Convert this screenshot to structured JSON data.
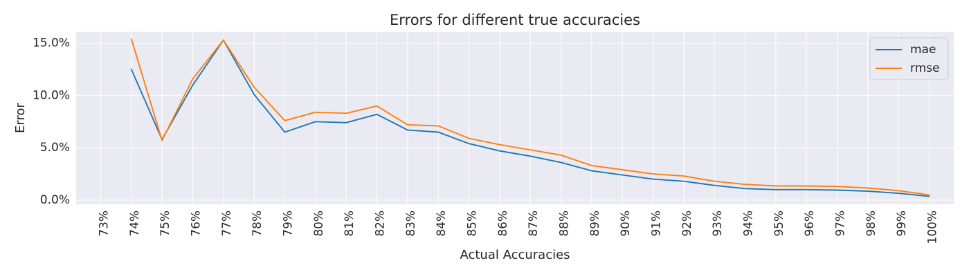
{
  "chart_data": {
    "type": "line",
    "title": "Errors for different true accuracies",
    "xlabel": "Actual Accuracies",
    "ylabel": "Error",
    "x_tick_labels": [
      "73%",
      "74%",
      "75%",
      "76%",
      "77%",
      "78%",
      "79%",
      "80%",
      "81%",
      "82%",
      "83%",
      "84%",
      "85%",
      "86%",
      "87%",
      "88%",
      "89%",
      "90%",
      "91%",
      "92%",
      "93%",
      "94%",
      "95%",
      "96%",
      "97%",
      "98%",
      "99%",
      "100%"
    ],
    "y_tick_labels": [
      "0.0%",
      "5.0%",
      "10.0%",
      "15.0%"
    ],
    "y_ticks": [
      0,
      5,
      10,
      15
    ],
    "xlim": [
      72.2,
      100.8
    ],
    "ylim": [
      -0.4,
      16.1
    ],
    "grid": true,
    "legend_position": "top-right",
    "x": [
      74,
      75,
      76,
      77,
      78,
      79,
      80,
      81,
      82,
      83,
      84,
      85,
      86,
      87,
      88,
      89,
      90,
      91,
      92,
      93,
      94,
      95,
      96,
      97,
      98,
      99,
      100
    ],
    "series": [
      {
        "name": "mae",
        "color": "#1f77b4",
        "values": [
          12.5,
          5.8,
          11.0,
          15.3,
          10.1,
          6.5,
          7.5,
          7.4,
          8.2,
          6.7,
          6.5,
          5.4,
          4.7,
          4.2,
          3.6,
          2.8,
          2.4,
          2.0,
          1.8,
          1.4,
          1.1,
          1.0,
          1.0,
          0.95,
          0.85,
          0.65,
          0.35
        ]
      },
      {
        "name": "rmse",
        "color": "#ff7f0e",
        "values": [
          15.4,
          5.7,
          11.6,
          15.3,
          10.8,
          7.6,
          8.4,
          8.3,
          9.0,
          7.2,
          7.1,
          5.9,
          5.3,
          4.8,
          4.3,
          3.3,
          2.9,
          2.5,
          2.3,
          1.8,
          1.5,
          1.35,
          1.35,
          1.3,
          1.15,
          0.9,
          0.5
        ]
      }
    ]
  }
}
